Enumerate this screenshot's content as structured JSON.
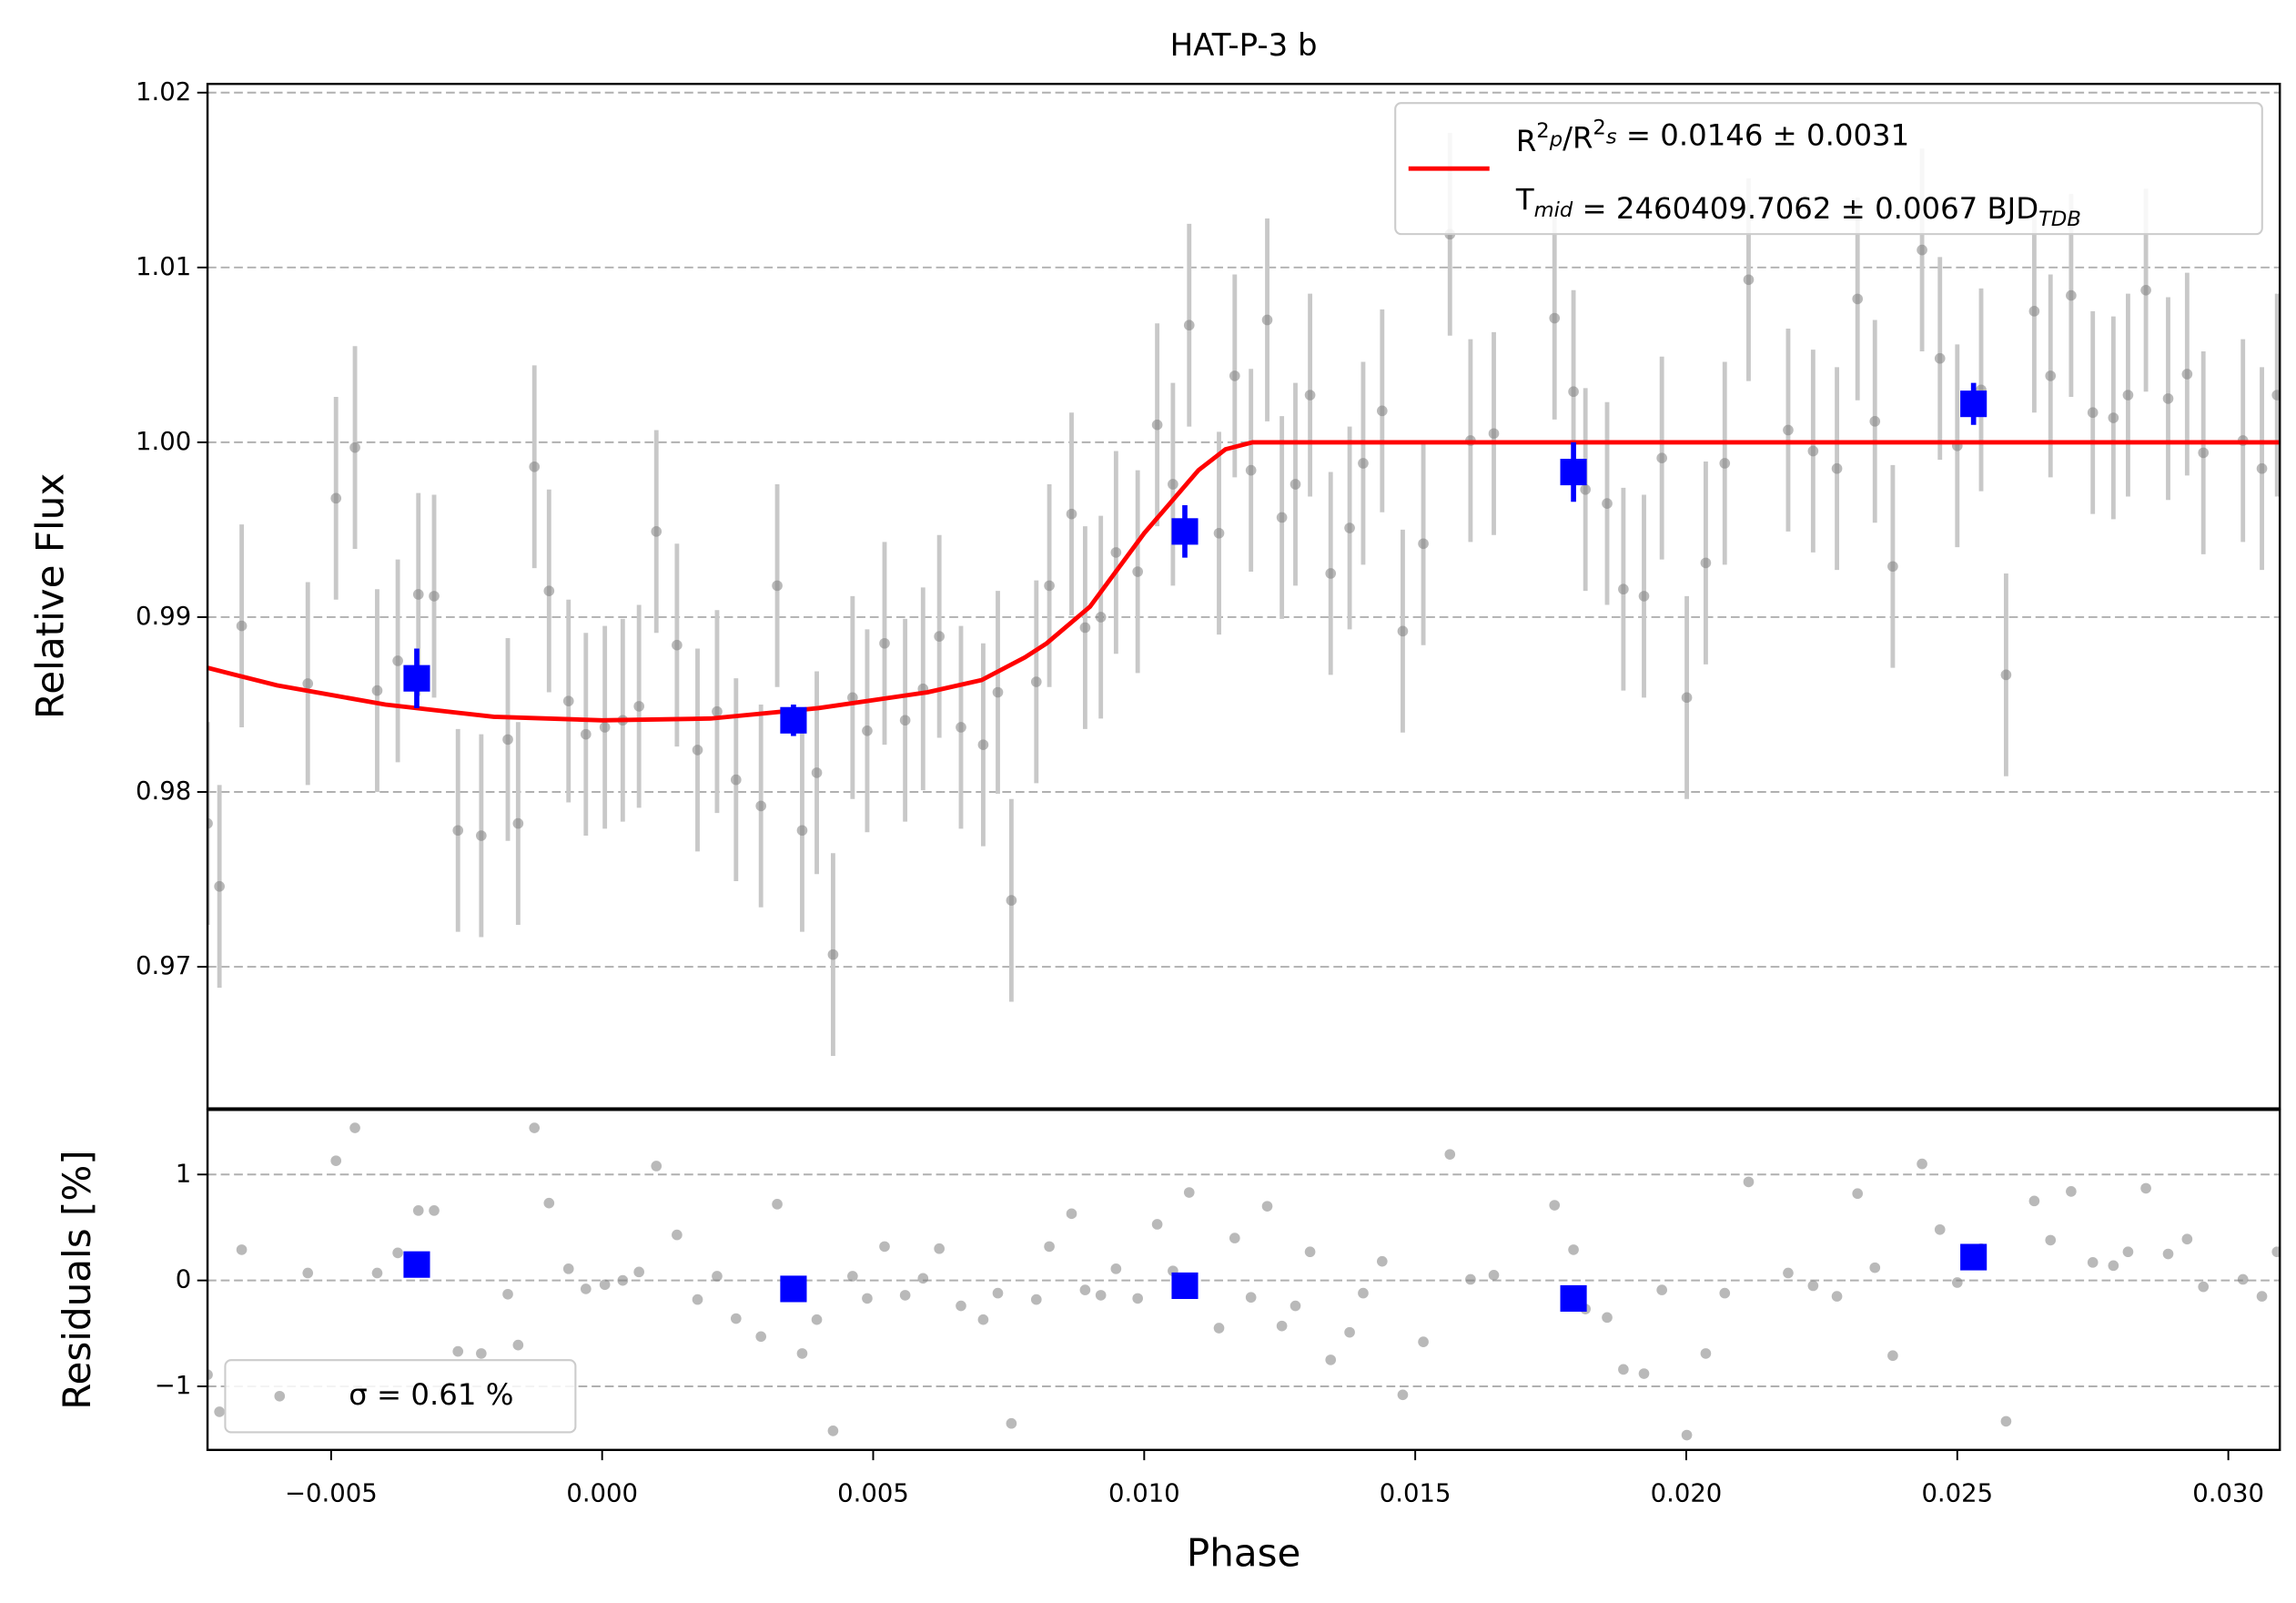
{
  "chart_data": [
    {
      "type": "scatter",
      "title": "HAT-P-3 b",
      "ylabel": "Relative Flux",
      "xlim": [
        -0.00728,
        0.03095
      ],
      "ylim": [
        0.9619,
        1.0205
      ],
      "yticks": [
        0.97,
        0.98,
        0.99,
        {
          "value": 1.0,
          "label": "1.00"
        },
        1.01,
        1.02
      ],
      "grid": true,
      "legend": "upper right",
      "data": {
        "color": "#808080",
        "error": 0.0058,
        "x": [
          -0.00728,
          -0.00706,
          -0.00665,
          -0.00543,
          -0.00491,
          -0.00456,
          -0.00415,
          -0.00377,
          -0.00339,
          -0.0031,
          -0.00266,
          -0.00223,
          -0.00174,
          -0.00155,
          -0.00125,
          -0.00098,
          -0.00062,
          -0.0003,
          5e-05,
          0.00038,
          0.00068,
          0.001,
          0.00138,
          0.00176,
          0.00212,
          0.00247,
          0.00293,
          0.00323,
          0.00369,
          0.00396,
          0.00426,
          0.00462,
          0.00489,
          0.00521,
          0.00559,
          0.00592,
          0.00622,
          0.00662,
          0.00703,
          0.0073,
          0.00755,
          0.00801,
          0.00825,
          0.00866,
          0.00891,
          0.0092,
          0.00948,
          0.00988,
          0.01024,
          0.01053,
          0.01083,
          0.01138,
          0.01167,
          0.01197,
          0.01227,
          0.01254,
          0.01279,
          0.01306,
          0.01344,
          0.01379,
          0.01404,
          0.01439,
          0.01477,
          0.01515,
          0.01564,
          0.01602,
          0.01645,
          0.01757,
          0.01792,
          0.01814,
          0.01854,
          0.01884,
          0.01922,
          0.01955,
          0.02001,
          0.02036,
          0.02071,
          0.02115,
          0.02188,
          0.02234,
          0.02278,
          0.02316,
          0.02348,
          0.02381,
          0.02435,
          0.02468,
          0.025,
          0.02544,
          0.0259,
          0.02642,
          0.02672,
          0.0271,
          0.0275,
          0.02788,
          0.02815,
          0.02848,
          0.02889,
          0.02924,
          0.02954,
          0.03027,
          0.03062,
          0.0309
        ],
        "values": [
          0.9782,
          0.9746,
          0.9895,
          0.9862,
          0.9968,
          0.9997,
          0.9858,
          0.9875,
          0.9913,
          0.9912,
          0.9778,
          0.9775,
          0.983,
          0.9782,
          0.9986,
          0.9915,
          0.9852,
          0.9833,
          0.9837,
          0.9841,
          0.9849,
          0.9949,
          0.9884,
          0.9824,
          0.9846,
          0.9807,
          0.9792,
          0.9918,
          0.9778,
          0.9811,
          0.9707,
          0.9854,
          0.9835,
          0.9885,
          0.9841,
          0.9859,
          0.9889,
          0.9837,
          0.9827,
          0.9857,
          0.9738,
          0.9863,
          0.9918,
          0.9959,
          0.9894,
          0.99,
          0.9937,
          0.9926,
          1.001,
          0.9976,
          1.0067,
          0.9948,
          1.0038,
          0.9984,
          1.007,
          0.9957,
          0.9976,
          1.0027,
          0.9925,
          0.9951,
          0.9988,
          1.0018,
          0.9892,
          0.9942,
          1.0119,
          1.0001,
          1.0005,
          1.0071,
          1.0029,
          0.9973,
          0.9965,
          0.9916,
          0.9912,
          0.9991,
          0.9854,
          0.9931,
          0.9988,
          1.0093,
          1.0007,
          0.9995,
          0.9985,
          1.0082,
          1.0012,
          0.9929,
          1.011,
          1.0048,
          0.9998,
          1.003,
          0.9867,
          1.0075,
          1.0038,
          1.0084,
          1.0017,
          1.0014,
          1.0027,
          1.0087,
          1.0025,
          1.0039,
          0.9994,
          1.0001,
          0.9985,
          1.0027
        ]
      },
      "binned": {
        "color": "#0000ff",
        "x": [
          -0.00342,
          0.00353,
          0.01075,
          0.01792,
          0.0253
        ],
        "values": [
          0.9865,
          0.9841,
          0.9949,
          0.9983,
          1.0022
        ],
        "errors": [
          0.0017,
          0.0009,
          0.0015,
          0.0017,
          0.0012
        ]
      },
      "model": {
        "color": "#ff0000",
        "name": [
          [
            "R",
            {
              "sup": "2"
            },
            {
              "sub": "p"
            },
            "/R",
            {
              "sup": "2"
            },
            {
              "sub": "s"
            },
            " = 0.0146 ± 0.0031"
          ],
          [
            "T",
            {
              "sub": "mid"
            },
            " = 2460409.7062 ± 0.0067 BJD",
            {
              "sub": "TDB"
            }
          ]
        ],
        "x": [
          -0.00728,
          -0.006,
          -0.004,
          -0.002,
          0,
          0.002,
          0.004,
          0.006,
          0.007,
          0.0078,
          0.0082,
          0.009,
          0.01,
          0.011,
          0.0115,
          0.012,
          0.031
        ],
        "values": [
          0.9871,
          0.9861,
          0.985,
          0.9843,
          0.9841,
          0.9842,
          0.9848,
          0.9857,
          0.9864,
          0.9877,
          0.9885,
          0.9906,
          0.9948,
          0.9984,
          0.9996,
          1.0,
          1.0
        ]
      }
    },
    {
      "type": "scatter",
      "ylabel": "Residuals [%]",
      "xlabel": "Phase",
      "xlim": [
        -0.00728,
        0.03095
      ],
      "ylim": [
        -1.6,
        1.61
      ],
      "yticks": [
        {
          "value": -1,
          "label": "−1"
        },
        0,
        1
      ],
      "xticks": [
        {
          "value": -0.005,
          "label": "−0.005"
        },
        {
          "value": 0,
          "label": "0.000"
        },
        0.005,
        {
          "value": 0.01,
          "label": "0.010"
        },
        0.015,
        {
          "value": 0.02,
          "label": "0.020"
        },
        0.025,
        {
          "value": 0.03,
          "label": "0.030"
        }
      ],
      "grid": true,
      "legend": "lower left",
      "data": {
        "color": "#808080",
        "name": "σ = 0.61 %",
        "x": [
          -0.00728,
          -0.00706,
          -0.00665,
          -0.00543,
          -0.00491,
          -0.00456,
          -0.00415,
          -0.00377,
          -0.00339,
          -0.0031,
          -0.00266,
          -0.00223,
          -0.00174,
          -0.00155,
          -0.00125,
          -0.00098,
          -0.00062,
          -0.0003,
          5e-05,
          0.00038,
          0.00068,
          0.001,
          0.00138,
          0.00176,
          0.00212,
          0.00247,
          0.00293,
          0.00323,
          0.00369,
          0.00396,
          0.00426,
          0.00462,
          0.00489,
          0.00521,
          0.00559,
          0.00592,
          0.00622,
          0.00662,
          0.00703,
          0.0073,
          0.00755,
          0.00801,
          0.00825,
          0.00866,
          0.00891,
          0.0092,
          0.00948,
          0.00988,
          0.01024,
          0.01053,
          0.01083,
          0.01138,
          0.01167,
          0.01197,
          0.01227,
          0.01254,
          0.01279,
          0.01306,
          0.01344,
          0.01379,
          0.01404,
          0.01439,
          0.01477,
          0.01515,
          0.01564,
          0.01602,
          0.01645,
          0.01757,
          0.01792,
          0.01814,
          0.01854,
          0.01884,
          0.01922,
          0.01955,
          0.02001,
          0.02036,
          0.02071,
          0.02115,
          0.02188,
          0.02234,
          0.02278,
          0.02316,
          0.02348,
          0.02381,
          0.02435,
          0.02468,
          0.025,
          0.02544,
          0.0259,
          0.02642,
          0.02672,
          0.0271,
          0.0275,
          0.02788,
          0.02815,
          0.02848,
          0.02889,
          0.02924,
          0.02954,
          0.03027,
          0.03062,
          0.0309
        ],
        "values": [
          -0.89,
          -1.24,
          0.29,
          0.07,
          1.13,
          1.44,
          0.07,
          0.26,
          0.66,
          0.66,
          -0.67,
          -0.69,
          -0.13,
          -0.61,
          1.44,
          0.73,
          0.11,
          -0.08,
          -0.04,
          0.0,
          0.08,
          1.08,
          0.43,
          -0.18,
          0.04,
          -0.36,
          -0.53,
          0.72,
          -0.69,
          -0.37,
          -1.42,
          0.04,
          -0.17,
          0.32,
          -0.14,
          0.02,
          0.3,
          -0.24,
          -0.37,
          -0.12,
          -1.35,
          -0.18,
          0.32,
          0.63,
          -0.09,
          -0.14,
          0.11,
          -0.17,
          0.53,
          0.09,
          0.83,
          -0.45,
          0.4,
          -0.16,
          0.7,
          -0.43,
          -0.24,
          0.27,
          -0.75,
          -0.49,
          -0.12,
          0.18,
          -1.08,
          -0.58,
          1.19,
          0.01,
          0.05,
          0.71,
          0.29,
          -0.27,
          -0.35,
          -0.84,
          -0.88,
          -0.09,
          -1.46,
          -0.69,
          -0.12,
          0.93,
          0.07,
          -0.05,
          -0.15,
          0.82,
          0.12,
          -0.71,
          1.1,
          0.48,
          -0.02,
          0.3,
          -1.33,
          0.75,
          0.38,
          0.84,
          0.17,
          0.14,
          0.27,
          0.87,
          0.25,
          0.39,
          -0.06,
          0.01,
          -0.15,
          0.27
        ]
      },
      "binned": {
        "color": "#0000ff",
        "x": [
          -0.00342,
          0.00353,
          0.01075,
          0.01792,
          0.0253
        ],
        "values": [
          0.15,
          -0.08,
          -0.05,
          -0.17,
          0.22
        ]
      }
    }
  ]
}
